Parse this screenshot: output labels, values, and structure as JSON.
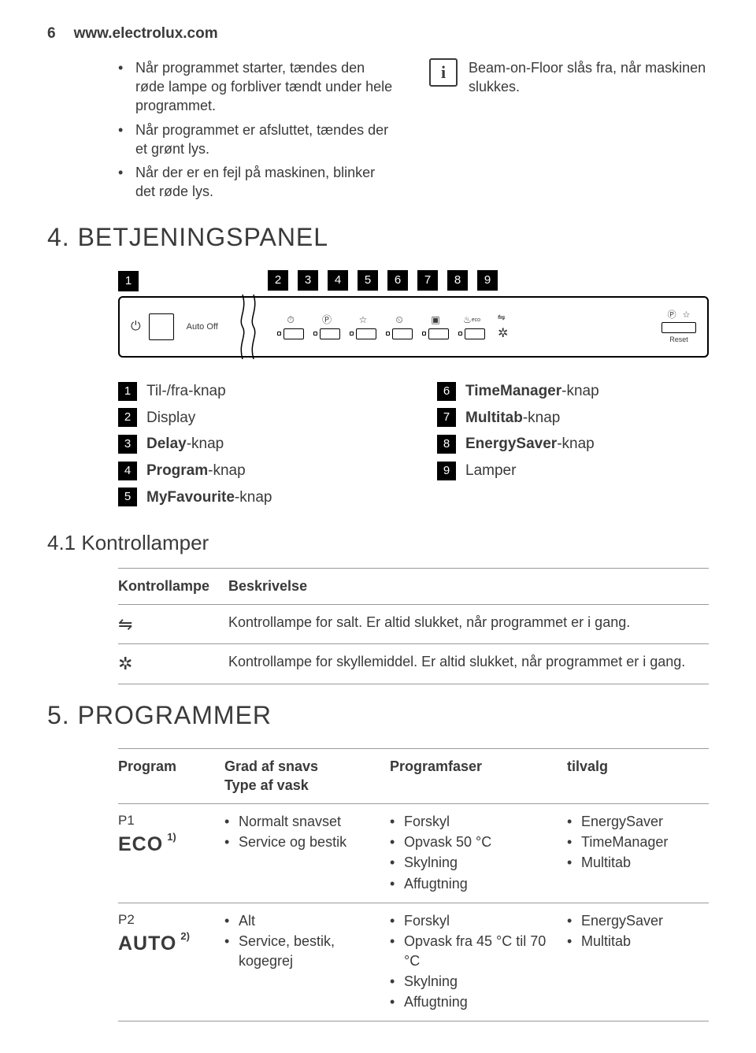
{
  "header": {
    "page_number": "6",
    "url": "www.electrolux.com"
  },
  "intro_bullets": [
    "Når programmet starter, tændes den røde lampe og forbliver tændt under hele programmet.",
    "Når programmet er afsluttet, tændes der et grønt lys.",
    "Når der er en fejl på maskinen, blinker det røde lys."
  ],
  "info_text": "Beam-on-Floor slås fra, når maskinen slukkes.",
  "section4_title": "4. BETJENINGSPANEL",
  "panel": {
    "auto_off": "Auto Off",
    "reset": "Reset",
    "eco": "eco",
    "callouts": [
      "1",
      "2",
      "3",
      "4",
      "5",
      "6",
      "7",
      "8",
      "9"
    ]
  },
  "legend_left": [
    {
      "n": "1",
      "pre": "",
      "bold": "",
      "post": "Til-/fra-knap"
    },
    {
      "n": "2",
      "pre": "",
      "bold": "",
      "post": "Display"
    },
    {
      "n": "3",
      "pre": "",
      "bold": "Delay",
      "post": "-knap"
    },
    {
      "n": "4",
      "pre": "",
      "bold": "Program",
      "post": "-knap"
    },
    {
      "n": "5",
      "pre": "",
      "bold": "MyFavourite",
      "post": "-knap"
    }
  ],
  "legend_right": [
    {
      "n": "6",
      "pre": "",
      "bold": "TimeManager",
      "post": "-knap"
    },
    {
      "n": "7",
      "pre": "",
      "bold": "Multitab",
      "post": "-knap"
    },
    {
      "n": "8",
      "pre": "",
      "bold": "EnergySaver",
      "post": "-knap"
    },
    {
      "n": "9",
      "pre": "",
      "bold": "",
      "post": "Lamper"
    }
  ],
  "section41_title": "4.1 Kontrollamper",
  "ktable": {
    "h1": "Kontrol­lampe",
    "h2": "Beskrivelse",
    "rows": [
      {
        "sym": "⇋",
        "desc": "Kontrollampe for salt. Er altid slukket, når programmet er i gang."
      },
      {
        "sym": "✲",
        "desc": "Kontrollampe for skyllemiddel. Er altid slukket, når programmet er i gang."
      }
    ]
  },
  "section5_title": "5. PROGRAMMER",
  "ptable": {
    "h1": "Program",
    "h2a": "Grad af snavs",
    "h2b": "Type af vask",
    "h3": "Programfaser",
    "h4": "tilvalg",
    "rows": [
      {
        "label": "P1",
        "name": "ECO",
        "sup": "1)",
        "c2": [
          "Normalt snavset",
          "Service og bestik"
        ],
        "c3": [
          "Forskyl",
          "Opvask 50 °C",
          "Skylning",
          "Affugtning"
        ],
        "c4": [
          "EnergySaver",
          "TimeManager",
          "Multitab"
        ]
      },
      {
        "label": "P2",
        "name": "AUTO",
        "sup": "2)",
        "c2": [
          "Alt",
          "Service, bestik, kogegrej"
        ],
        "c3": [
          "Forskyl",
          "Opvask fra 45 °C til 70 °C",
          "Skylning",
          "Affugtning"
        ],
        "c4": [
          "EnergySaver",
          "Multitab"
        ]
      }
    ]
  }
}
